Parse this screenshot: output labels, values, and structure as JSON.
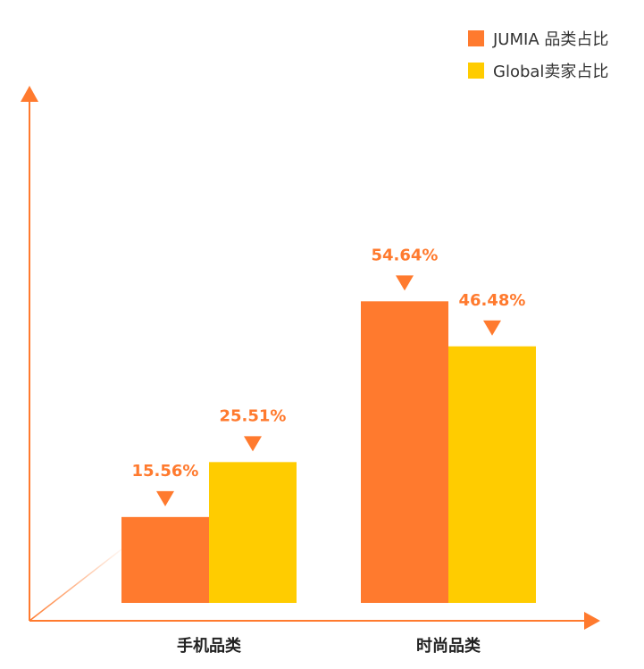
{
  "chart_data": {
    "type": "bar",
    "title": "",
    "xlabel": "",
    "ylabel": "",
    "categories": [
      "手机品类",
      "时尚品类"
    ],
    "series": [
      {
        "name": "JUMIA 品类占比",
        "values": [
          "15.56%",
          "54.64%"
        ],
        "color": "#FF7A2E"
      },
      {
        "name": "Global卖家占比",
        "values": [
          "25.51%",
          "46.48%"
        ],
        "color": "#FFCC00"
      }
    ],
    "ylim": [
      0,
      100
    ],
    "grid": false,
    "legend_position": "top-right",
    "axis_color": "#FF7A2E",
    "label_color": "#FF7A2E",
    "axis_style": "3d-perspective"
  }
}
